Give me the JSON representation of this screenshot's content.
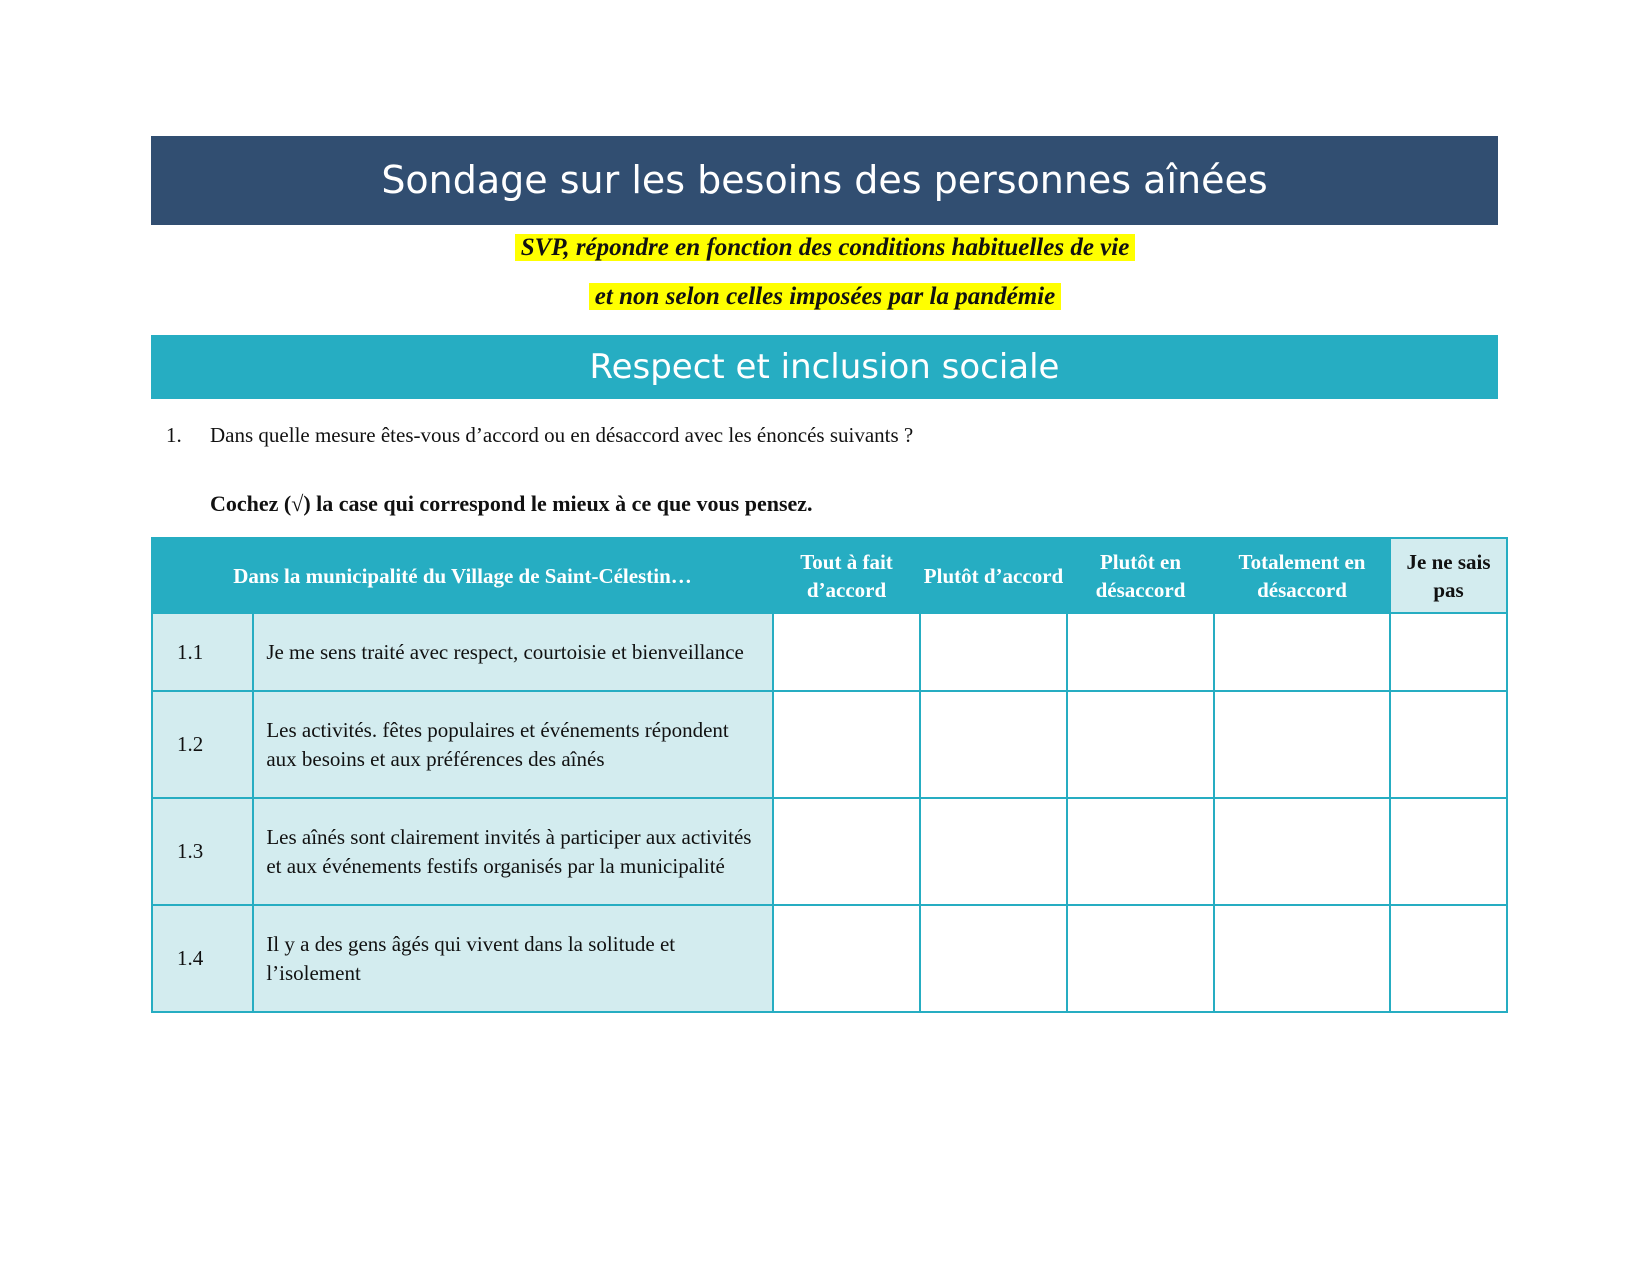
{
  "title": "Sondage sur les besoins des personnes aînées",
  "notice_line1": "SVP, répondre en fonction des conditions habituelles de vie",
  "notice_line2": "et non selon celles imposées par la pandémie",
  "section": "Respect et inclusion sociale",
  "question": {
    "number": "1.",
    "text": "Dans quelle mesure êtes-vous d’accord ou en désaccord avec les énoncés suivants ?"
  },
  "instruction": "Cochez (√) la case qui correspond le mieux à ce que vous pensez.",
  "table": {
    "header": "Dans la municipalité du Village de Saint-Célestin…",
    "columns": [
      "Tout à fait d’accord",
      "Plutôt d’accord",
      "Plutôt en désaccord",
      "Totalement en désaccord",
      "Je ne sais pas"
    ],
    "rows": [
      {
        "num": "1.1",
        "text": "Je me sens traité avec respect, courtoisie et bienveillance"
      },
      {
        "num": "1.2",
        "text": "Les activités. fêtes populaires et événements répondent aux besoins et aux préférences des aînés"
      },
      {
        "num": "1.3",
        "text": "Les aînés sont clairement invités à participer aux activités et aux événements festifs organisés par la municipalité"
      },
      {
        "num": "1.4",
        "text": "Il y a des gens âgés qui vivent dans la solitude et l’isolement"
      }
    ]
  },
  "colors": {
    "title_band": "#314e71",
    "section_band": "#26adc2",
    "row_fill": "#d3ecef",
    "highlight": "#ffff00"
  }
}
